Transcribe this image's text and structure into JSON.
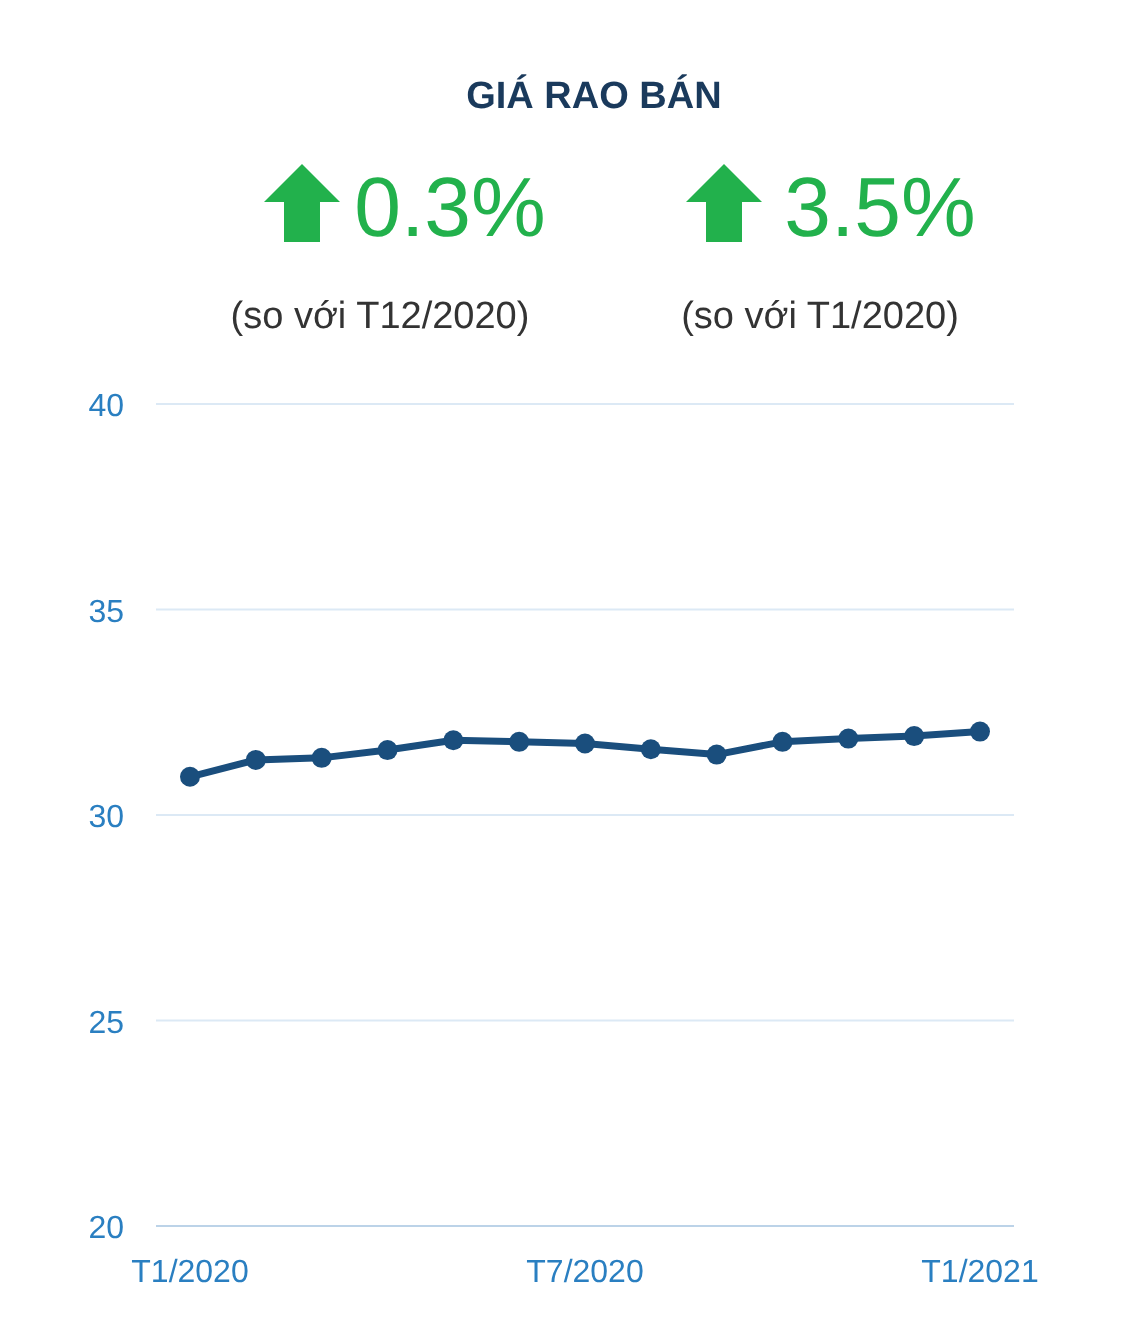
{
  "chart_data": {
    "type": "line",
    "title": "GIÁ RAO BÁN",
    "annotations": [
      "0.3%",
      "(so với T12/2020)",
      "3.5%",
      "(so với T1/2020)"
    ],
    "categories": [
      "T1/2020",
      null,
      null,
      null,
      null,
      null,
      "T7/2020",
      null,
      null,
      null,
      null,
      null,
      "T1/2021"
    ],
    "series": [
      {
        "color": "#1a4e7d",
        "values": [
          30.93,
          31.34,
          31.39,
          31.58,
          31.82,
          31.78,
          31.74,
          31.6,
          31.47,
          31.78,
          31.86,
          31.92,
          32.03
        ]
      }
    ],
    "ylim": [
      20,
      40
    ],
    "yticks": [
      20,
      25,
      30,
      35,
      40
    ],
    "grid": "y",
    "marker": "circle",
    "line_style": "solid"
  }
}
